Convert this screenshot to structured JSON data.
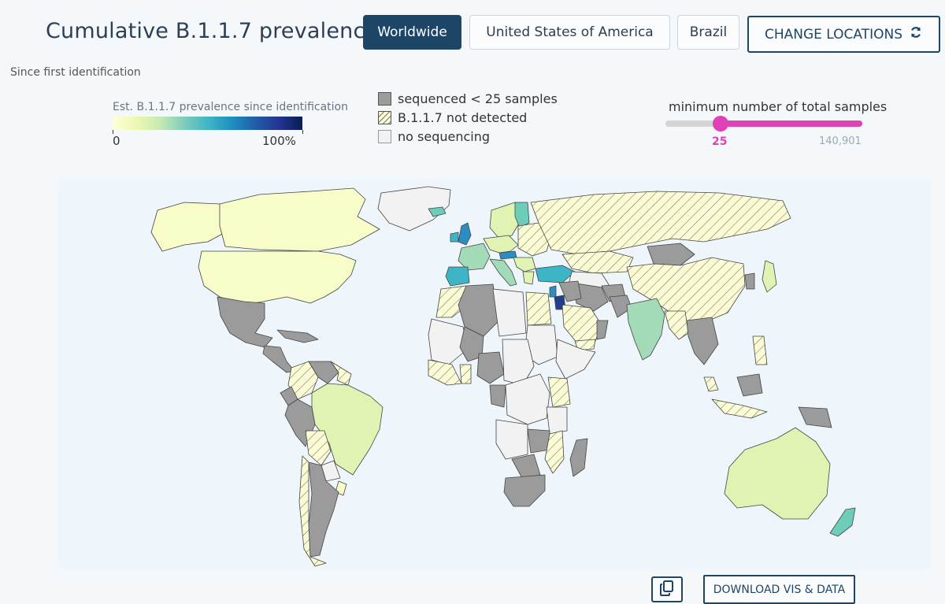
{
  "header": {
    "title": "Cumulative B.1.1.7 prevalence",
    "subtitle": "Since first identification",
    "locations": [
      {
        "label": "Worldwide",
        "active": true
      },
      {
        "label": "United States of America",
        "active": false
      },
      {
        "label": "Brazil",
        "active": false
      }
    ],
    "change_locations_label": "CHANGE LOCATIONS"
  },
  "colorbar": {
    "title": "Est. B.1.1.7 prevalence since identification",
    "min_label": "0",
    "max_label": "100%"
  },
  "legend": [
    {
      "label": "sequenced < 25 samples",
      "style": "gray"
    },
    {
      "label": "B.1.1.7 not detected",
      "style": "hatch"
    },
    {
      "label": "no sequencing",
      "style": "white"
    }
  ],
  "slider": {
    "label": "minimum number of total samples",
    "value": "25",
    "max": "140,901",
    "fraction": 0.28
  },
  "footer": {
    "download_label": "DOWNLOAD VIS & DATA"
  },
  "colors": {
    "accent": "#1d4568",
    "slider": "#e141b6",
    "gray": "#9b9b9b",
    "none": "#f2f2f2",
    "hatch_bg": "#fbfbd4",
    "ocean": "#eef6fb",
    "low": "#f7fcc8",
    "light": "#e0f3b2",
    "mid": "#a3dbb9",
    "teal": "#6ccdb9",
    "cyan": "#3eb5c6",
    "blue": "#2c8dc3",
    "dark": "#233e8f"
  },
  "map": {
    "regions": [
      {
        "name": "canada",
        "fill": "low"
      },
      {
        "name": "usa",
        "fill": "low"
      },
      {
        "name": "alaska",
        "fill": "low"
      },
      {
        "name": "greenland",
        "fill": "none"
      },
      {
        "name": "mexico",
        "fill": "gray"
      },
      {
        "name": "central-america",
        "fill": "gray"
      },
      {
        "name": "caribbean",
        "fill": "gray"
      },
      {
        "name": "venezuela",
        "fill": "gray"
      },
      {
        "name": "colombia",
        "fill": "hatch"
      },
      {
        "name": "ecuador",
        "fill": "gray"
      },
      {
        "name": "peru",
        "fill": "gray"
      },
      {
        "name": "guianas",
        "fill": "hatch"
      },
      {
        "name": "brazil",
        "fill": "light"
      },
      {
        "name": "bolivia",
        "fill": "hatch"
      },
      {
        "name": "paraguay",
        "fill": "none"
      },
      {
        "name": "chile",
        "fill": "hatch"
      },
      {
        "name": "argentina",
        "fill": "gray"
      },
      {
        "name": "uruguay",
        "fill": "low"
      },
      {
        "name": "iceland",
        "fill": "teal"
      },
      {
        "name": "uk",
        "fill": "blue"
      },
      {
        "name": "ireland",
        "fill": "cyan"
      },
      {
        "name": "scandinavia",
        "fill": "light"
      },
      {
        "name": "finland",
        "fill": "teal"
      },
      {
        "name": "france",
        "fill": "mid"
      },
      {
        "name": "iberia",
        "fill": "cyan"
      },
      {
        "name": "italy",
        "fill": "mid"
      },
      {
        "name": "central-europe",
        "fill": "light"
      },
      {
        "name": "austria",
        "fill": "blue"
      },
      {
        "name": "eastern-europe",
        "fill": "hatch"
      },
      {
        "name": "balkans",
        "fill": "light"
      },
      {
        "name": "greece",
        "fill": "light"
      },
      {
        "name": "turkey",
        "fill": "cyan"
      },
      {
        "name": "russia",
        "fill": "hatch"
      },
      {
        "name": "kazakhstan",
        "fill": "hatch"
      },
      {
        "name": "central-asia",
        "fill": "none"
      },
      {
        "name": "mongolia",
        "fill": "gray"
      },
      {
        "name": "china",
        "fill": "hatch"
      },
      {
        "name": "japan",
        "fill": "light"
      },
      {
        "name": "korea",
        "fill": "gray"
      },
      {
        "name": "iran",
        "fill": "gray"
      },
      {
        "name": "afghanistan",
        "fill": "gray"
      },
      {
        "name": "pakistan",
        "fill": "gray"
      },
      {
        "name": "india",
        "fill": "mid"
      },
      {
        "name": "bangladesh-myanmar",
        "fill": "hatch"
      },
      {
        "name": "indochina",
        "fill": "gray"
      },
      {
        "name": "malaysia",
        "fill": "hatch"
      },
      {
        "name": "indonesia",
        "fill": "hatch"
      },
      {
        "name": "borneo",
        "fill": "gray"
      },
      {
        "name": "philippines",
        "fill": "hatch"
      },
      {
        "name": "new-guinea",
        "fill": "gray"
      },
      {
        "name": "australia",
        "fill": "light"
      },
      {
        "name": "new-zealand",
        "fill": "teal"
      },
      {
        "name": "jordan",
        "fill": "dark"
      },
      {
        "name": "levant",
        "fill": "blue"
      },
      {
        "name": "iraq-syria",
        "fill": "gray"
      },
      {
        "name": "arabia",
        "fill": "hatch"
      },
      {
        "name": "oman",
        "fill": "gray"
      },
      {
        "name": "yemen",
        "fill": "hatch"
      },
      {
        "name": "morocco",
        "fill": "hatch"
      },
      {
        "name": "algeria",
        "fill": "gray"
      },
      {
        "name": "libya",
        "fill": "none"
      },
      {
        "name": "egypt",
        "fill": "hatch"
      },
      {
        "name": "sahel",
        "fill": "none"
      },
      {
        "name": "mali",
        "fill": "gray"
      },
      {
        "name": "west-africa",
        "fill": "hatch"
      },
      {
        "name": "nigeria",
        "fill": "gray"
      },
      {
        "name": "ghana",
        "fill": "hatch"
      },
      {
        "name": "sudan",
        "fill": "none"
      },
      {
        "name": "horn-of-africa",
        "fill": "none"
      },
      {
        "name": "kenya",
        "fill": "hatch"
      },
      {
        "name": "central-africa",
        "fill": "none"
      },
      {
        "name": "gabon",
        "fill": "gray"
      },
      {
        "name": "drc",
        "fill": "none"
      },
      {
        "name": "tanzania",
        "fill": "none"
      },
      {
        "name": "angola",
        "fill": "none"
      },
      {
        "name": "zambia",
        "fill": "gray"
      },
      {
        "name": "mozambique",
        "fill": "hatch"
      },
      {
        "name": "botswana",
        "fill": "gray"
      },
      {
        "name": "south-africa",
        "fill": "gray"
      },
      {
        "name": "madagascar",
        "fill": "gray"
      }
    ]
  }
}
